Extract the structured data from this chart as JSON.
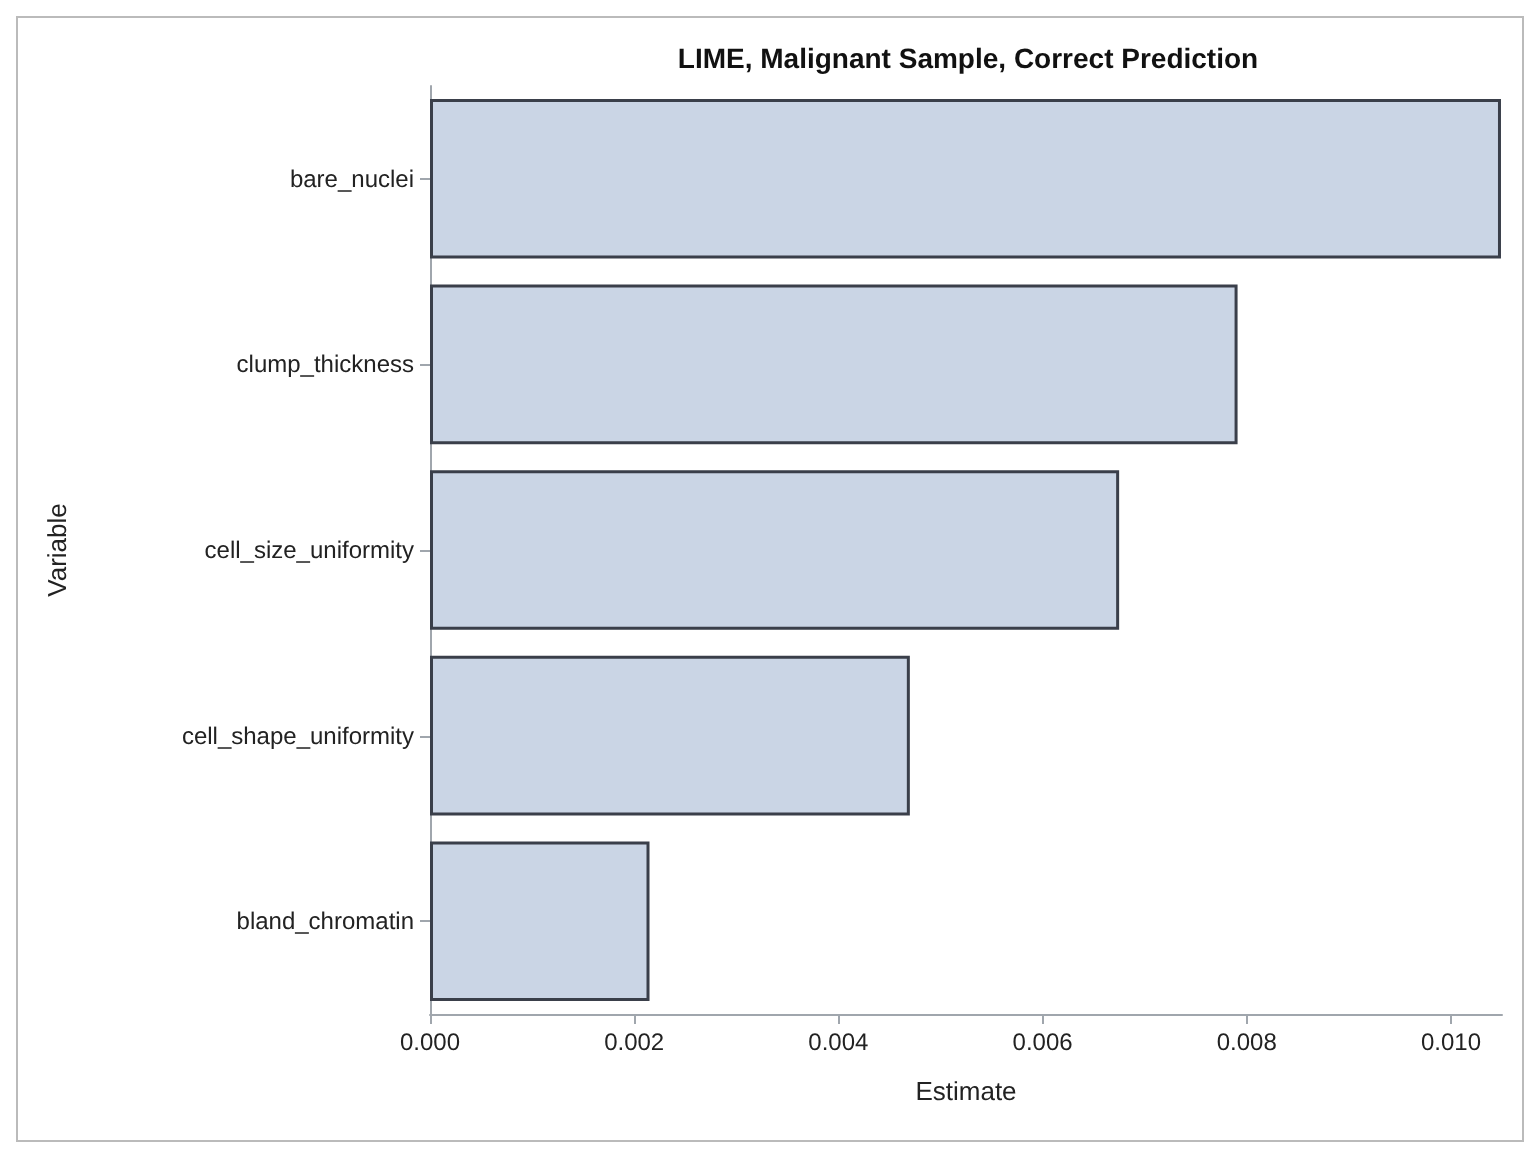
{
  "chart_data": {
    "type": "bar",
    "orientation": "horizontal",
    "title": "LIME, Malignant Sample, Correct Prediction",
    "xlabel": "Estimate",
    "ylabel": "Variable",
    "categories": [
      "bare_nuclei",
      "clump_thickness",
      "cell_size_uniformity",
      "cell_shape_uniformity",
      "bland_chromatin"
    ],
    "values": [
      0.01049,
      0.00791,
      0.00675,
      0.0047,
      0.00215
    ],
    "color": "#cad5e5",
    "xlim": [
      0,
      0.0105
    ],
    "xticks": [
      {
        "value": 0,
        "label": "0.000"
      },
      {
        "value": 0.002,
        "label": "0.002"
      },
      {
        "value": 0.004,
        "label": "0.004"
      },
      {
        "value": 0.006,
        "label": "0.006"
      },
      {
        "value": 0.008,
        "label": "0.008"
      },
      {
        "value": 0.01,
        "label": "0.010"
      }
    ],
    "grid": false
  }
}
